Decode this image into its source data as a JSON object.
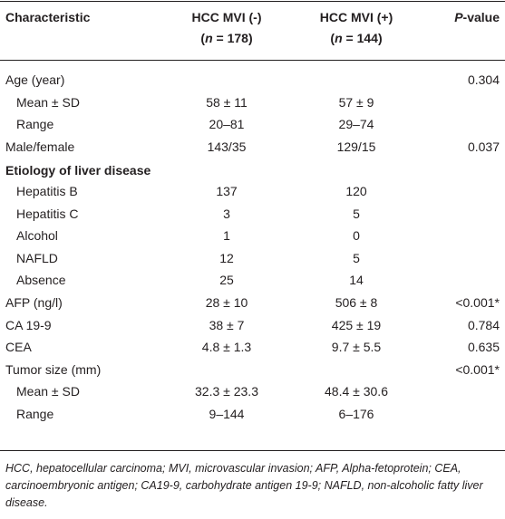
{
  "table": {
    "header": {
      "characteristic": "Characteristic",
      "group1": {
        "name": "HCC MVI (-)",
        "n": [
          "(",
          "n",
          " = 178)"
        ]
      },
      "group2": {
        "name": "HCC MVI (+)",
        "n": [
          "(",
          "n",
          " = 144)"
        ]
      },
      "p_value": [
        "P",
        "-value"
      ]
    },
    "rows": [
      {
        "cells": [
          "Age (year)",
          null,
          null,
          "0.304"
        ]
      },
      {
        "cells": [
          "Mean ± SD",
          "58 ± 11",
          "57 ± 9",
          null
        ],
        "indent": true
      },
      {
        "cells": [
          "Range",
          "20–81",
          "29–74",
          null
        ],
        "indent": true
      },
      {
        "cells": [
          "Male/female",
          "143/35",
          "129/15",
          "0.037"
        ]
      },
      {
        "cells": [
          "Etiology of liver disease",
          null,
          null,
          null
        ],
        "section": true
      },
      {
        "cells": [
          "Hepatitis B",
          "137",
          "120",
          null
        ],
        "indent": true
      },
      {
        "cells": [
          "Hepatitis C",
          "3",
          "5",
          null
        ],
        "indent": true
      },
      {
        "cells": [
          "Alcohol",
          "1",
          "0",
          null
        ],
        "indent": true
      },
      {
        "cells": [
          "NAFLD",
          "12",
          "5",
          null
        ],
        "indent": true
      },
      {
        "cells": [
          "Absence",
          "25",
          "14",
          null
        ],
        "indent": true
      },
      {
        "cells": [
          "AFP (ng/l)",
          "28 ± 10",
          "506 ± 8",
          "<0.001*"
        ]
      },
      {
        "cells": [
          "CA 19-9",
          "38 ± 7",
          "425 ± 19",
          "0.784"
        ]
      },
      {
        "cells": [
          "CEA",
          "4.8 ± 1.3",
          "9.7 ± 5.5",
          "0.635"
        ]
      },
      {
        "cells": [
          "Tumor size (mm)",
          null,
          null,
          "<0.001*"
        ]
      },
      {
        "cells": [
          "Mean ± SD",
          "32.3 ± 23.3",
          "48.4 ± 30.6",
          null
        ],
        "indent": true
      },
      {
        "cells": [
          "Range",
          "9–144",
          "6–176",
          null
        ],
        "indent": true
      }
    ],
    "footnote": "HCC, hepatocellular carcinoma; MVI, microvascular invasion; AFP, Alpha-fetoprotein; CEA, carcinoembryonic antigen; CA19-9, carbohydrate antigen 19-9; NAFLD, non-alcoholic fatty liver disease."
  }
}
